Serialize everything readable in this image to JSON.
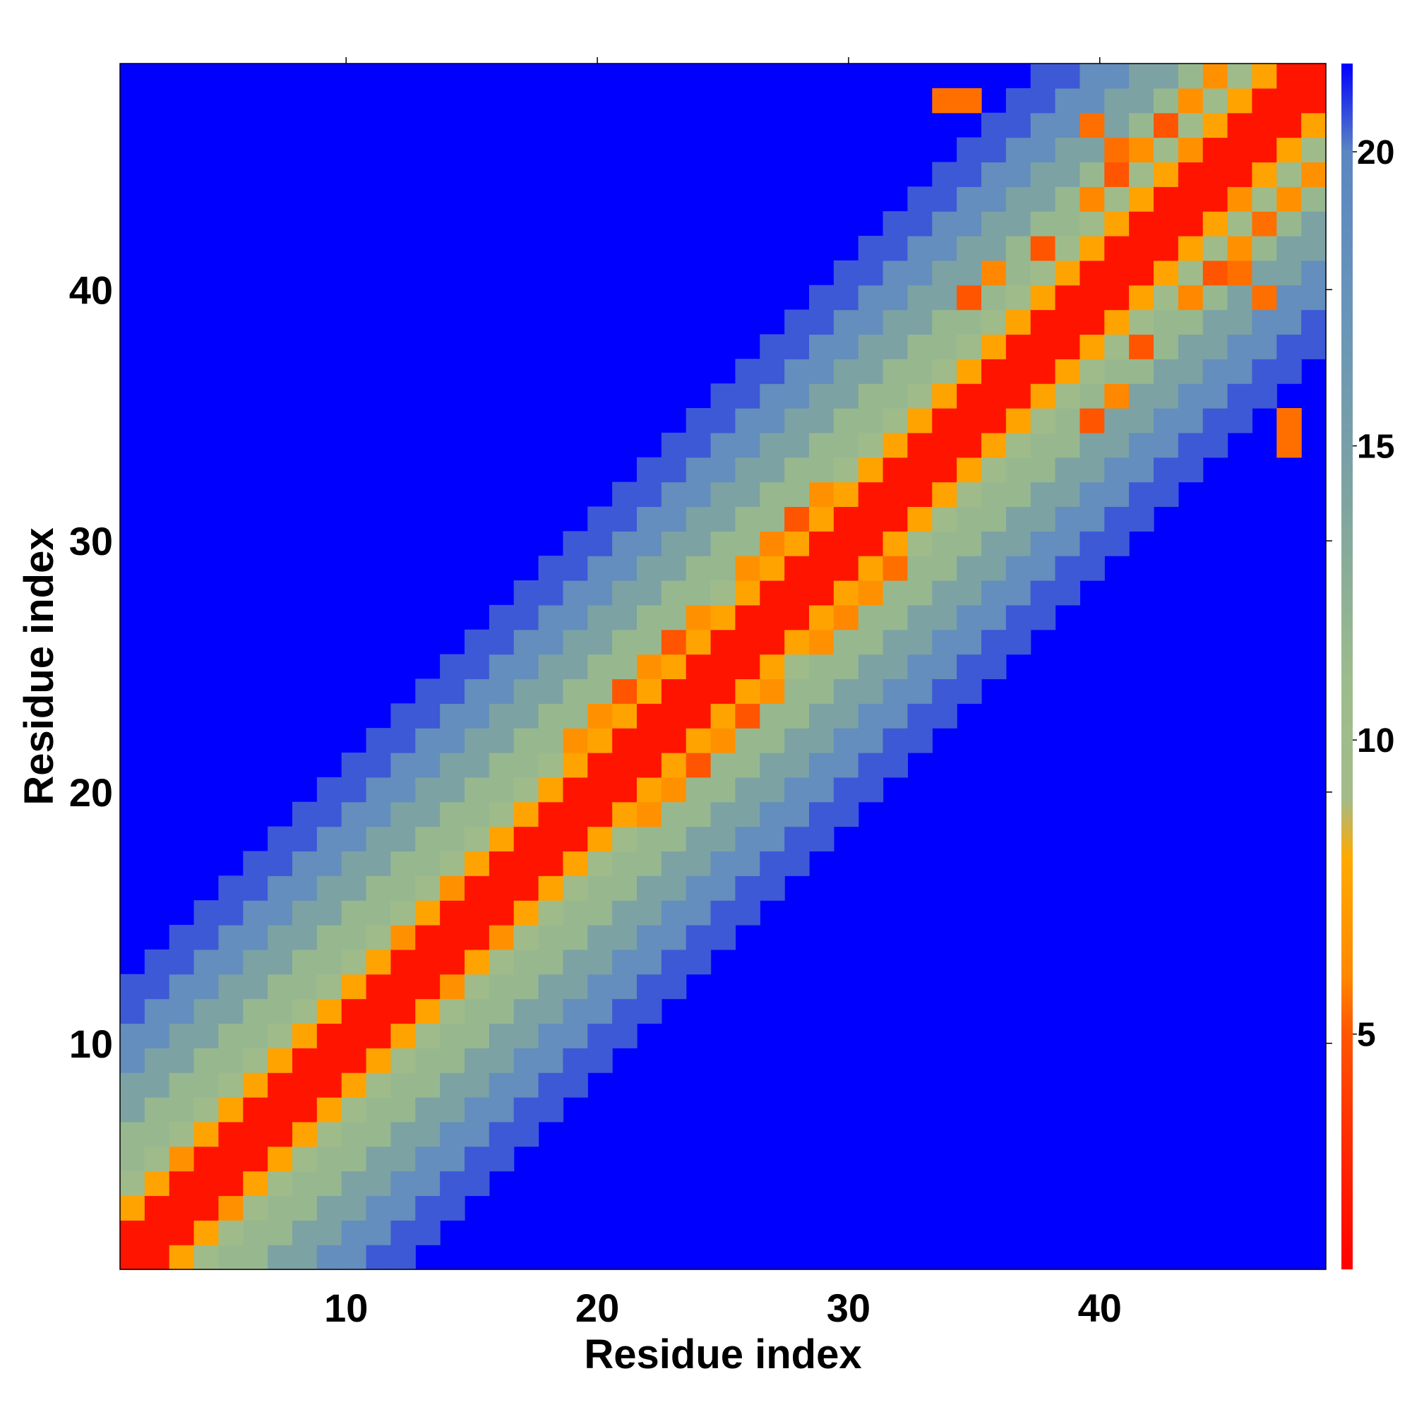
{
  "chart_data": {
    "type": "heatmap",
    "title": "",
    "xlabel": "Residue index",
    "ylabel": "Residue index",
    "n_residues": 49,
    "xlim": [
      1,
      49
    ],
    "ylim": [
      1,
      49
    ],
    "x_ticks": [
      10,
      20,
      30,
      40
    ],
    "y_ticks": [
      10,
      20,
      30,
      40
    ],
    "colorbar": {
      "min": 1,
      "max": 21.5,
      "ticks": [
        5,
        10,
        15,
        20
      ],
      "clip_color": "#0000ff",
      "stops": [
        {
          "value": 1,
          "color": "#ff0000"
        },
        {
          "value": 3.5,
          "color": "#ff3300"
        },
        {
          "value": 5,
          "color": "#ff5500"
        },
        {
          "value": 6,
          "color": "#ff8800"
        },
        {
          "value": 8,
          "color": "#ffaa00"
        },
        {
          "value": 9,
          "color": "#a3bb88"
        },
        {
          "value": 11,
          "color": "#9cbc8c"
        },
        {
          "value": 14,
          "color": "#7fa4a0"
        },
        {
          "value": 17,
          "color": "#6a96b8"
        },
        {
          "value": 20,
          "color": "#5b86c2"
        },
        {
          "value": 21.5,
          "color": "#0000ff"
        }
      ]
    },
    "band_profile": [
      {
        "offset_max": 1,
        "value": 2
      },
      {
        "offset_max": 2,
        "value": 7.6
      },
      {
        "offset_max": 3,
        "value": 9.8
      },
      {
        "offset_max": 5,
        "value": 11.5
      },
      {
        "offset_max": 7,
        "value": 14.5
      },
      {
        "offset_max": 9,
        "value": 18.5
      },
      {
        "offset_max": 11,
        "value": 20.5
      }
    ],
    "contact_cells": [
      {
        "i": 3,
        "j": 5,
        "value": 6.5
      },
      {
        "i": 12,
        "j": 14,
        "value": 6.5
      },
      {
        "i": 14,
        "j": 16,
        "value": 6.5
      },
      {
        "i": 19,
        "j": 22,
        "value": 6.5
      },
      {
        "i": 20,
        "j": 23,
        "value": 6.5
      },
      {
        "i": 21,
        "j": 24,
        "value": 5
      },
      {
        "i": 22,
        "j": 25,
        "value": 6.5
      },
      {
        "i": 23,
        "j": 26,
        "value": 5
      },
      {
        "i": 24,
        "j": 27,
        "value": 6.5
      },
      {
        "i": 26,
        "j": 29,
        "value": 6.5
      },
      {
        "i": 27,
        "j": 30,
        "value": 6
      },
      {
        "i": 28,
        "j": 31,
        "value": 5
      },
      {
        "i": 29,
        "j": 32,
        "value": 6.5
      },
      {
        "i": 31,
        "j": 28,
        "value": 6.5
      },
      {
        "i": 32,
        "j": 29,
        "value": 5.5
      },
      {
        "i": 35,
        "j": 40,
        "value": 5
      },
      {
        "i": 36,
        "j": 41,
        "value": 6
      },
      {
        "i": 38,
        "j": 42,
        "value": 5
      },
      {
        "i": 40,
        "j": 44,
        "value": 6
      },
      {
        "i": 41,
        "j": 45,
        "value": 5
      },
      {
        "i": 42,
        "j": 46,
        "value": 6.5
      },
      {
        "i": 43,
        "j": 47,
        "value": 5
      },
      {
        "i": 44,
        "j": 48,
        "value": 6.5
      },
      {
        "i": 45,
        "j": 49,
        "value": 6.5
      },
      {
        "i": 34,
        "j": 48,
        "value": 5.5
      },
      {
        "i": 35,
        "j": 48,
        "value": 5.5
      },
      {
        "i": 47,
        "j": 40,
        "value": 5.5
      },
      {
        "i": 46,
        "j": 41,
        "value": 5.5
      },
      {
        "i": 47,
        "j": 43,
        "value": 5.5
      },
      {
        "i": 46,
        "j": 44,
        "value": 6.5
      }
    ]
  }
}
